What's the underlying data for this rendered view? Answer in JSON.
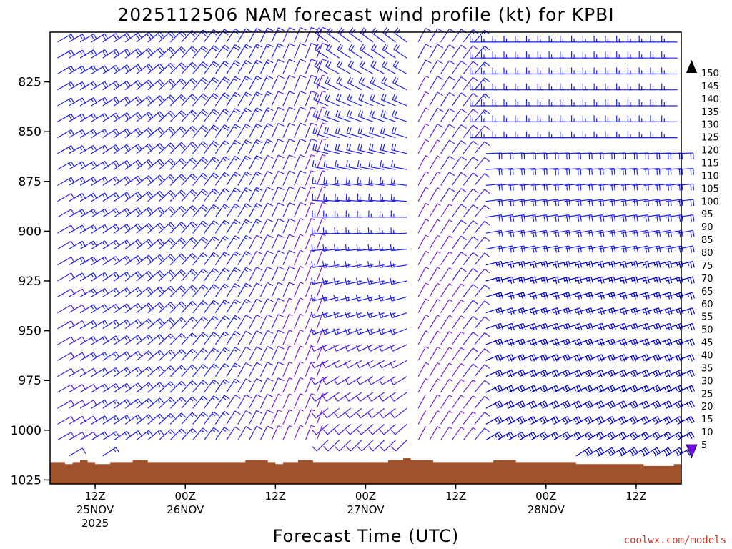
{
  "chart_data": {
    "type": "wind-barb-profile",
    "title": "2025112506 NAM forecast wind profile (kt) for KPBI",
    "xlabel": "Forecast Time (UTC)",
    "ylabel": "",
    "y_ticks": [
      "825",
      "850",
      "875",
      "900",
      "925",
      "950",
      "975",
      "1000",
      "1025"
    ],
    "y_range": [
      800,
      1027
    ],
    "x_ticks": [
      {
        "label": "12Z",
        "sub": "25NOV",
        "sub2": "2025",
        "hour": 6
      },
      {
        "label": "00Z",
        "sub": "26NOV",
        "sub2": "",
        "hour": 18
      },
      {
        "label": "12Z",
        "sub": "",
        "sub2": "",
        "hour": 30
      },
      {
        "label": "00Z",
        "sub": "27NOV",
        "sub2": "",
        "hour": 42
      },
      {
        "label": "12Z",
        "sub": "",
        "sub2": "",
        "hour": 54
      },
      {
        "label": "00Z",
        "sub": "28NOV",
        "sub2": "",
        "hour": 66
      },
      {
        "label": "12Z",
        "sub": "",
        "sub2": "",
        "hour": 78
      }
    ],
    "x_range_hours": [
      0,
      84
    ],
    "colorbar": {
      "unit": "kt",
      "ticks": [
        "150",
        "145",
        "140",
        "135",
        "130",
        "125",
        "120",
        "115",
        "110",
        "105",
        "100",
        "95",
        "90",
        "85",
        "80",
        "75",
        "70",
        "65",
        "60",
        "55",
        "50",
        "45",
        "40",
        "35",
        "30",
        "25",
        "20",
        "15",
        "10",
        "5"
      ],
      "colors": [
        "#ff00ff",
        "#ff00cc",
        "#ff0099",
        "#ff0066",
        "#ff0033",
        "#ff0000",
        "#ff1a00",
        "#ff3300",
        "#ff4d00",
        "#ff6600",
        "#ff8000",
        "#ff9900",
        "#ffb300",
        "#ffcc00",
        "#ffe600",
        "#ffff00",
        "#ccff00",
        "#66ff00",
        "#00ff33",
        "#00ff66",
        "#00ffaa",
        "#00e6e6",
        "#00ccff",
        "#0099ff",
        "#0066ff",
        "#0033ff",
        "#0000ff",
        "#2200ee",
        "#4400dd",
        "#7700ee"
      ]
    },
    "surface_pressure": [
      1016,
      1016,
      1017,
      1016,
      1015,
      1016,
      1017,
      1017,
      1016,
      1016,
      1016,
      1015,
      1015,
      1016,
      1016,
      1016,
      1016,
      1016,
      1016,
      1016,
      1016,
      1016,
      1016,
      1016,
      1016,
      1016,
      1015,
      1015,
      1015,
      1016,
      1017,
      1016,
      1016,
      1015,
      1015,
      1016,
      1016,
      1016,
      1016,
      1016,
      1016,
      1016,
      1016,
      1016,
      1016,
      1015,
      1015,
      1014,
      1015,
      1015,
      1015,
      1016,
      1016,
      1016,
      1016,
      1016,
      1016,
      1016,
      1016,
      1015,
      1015,
      1015,
      1016,
      1016,
      1016,
      1016,
      1016,
      1016,
      1016,
      1016,
      1017,
      1017,
      1017,
      1017,
      1017,
      1017,
      1017,
      1017,
      1017,
      1018,
      1018,
      1018,
      1018,
      1017,
      1017
    ],
    "credit": "coolwx.com/models"
  }
}
